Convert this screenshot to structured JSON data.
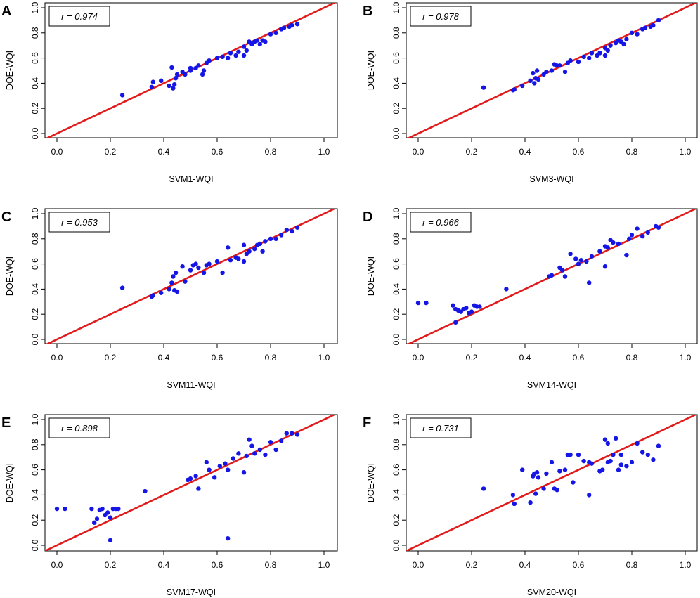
{
  "chart_data": [
    {
      "type": "scatter",
      "panel": "A",
      "r_label": "r = 0.974",
      "xlabel": "SVM1-WQI",
      "ylabel": "DOE-WQI",
      "xlim": [
        0,
        1
      ],
      "ylim": [
        0,
        1
      ],
      "xticks": [
        "0.0",
        "0.2",
        "0.4",
        "0.6",
        "0.8",
        "1.0"
      ],
      "yticks": [
        "0.0",
        "0.2",
        "0.4",
        "0.6",
        "0.8",
        "1.0"
      ],
      "reference_line": "y = x",
      "colors": {
        "points": "#1515e6",
        "line": "#e11b1b"
      },
      "x": [
        0.245,
        0.355,
        0.36,
        0.39,
        0.42,
        0.43,
        0.435,
        0.44,
        0.445,
        0.45,
        0.47,
        0.48,
        0.5,
        0.5,
        0.52,
        0.53,
        0.545,
        0.55,
        0.56,
        0.57,
        0.6,
        0.62,
        0.64,
        0.65,
        0.67,
        0.68,
        0.7,
        0.7,
        0.71,
        0.72,
        0.73,
        0.74,
        0.75,
        0.76,
        0.77,
        0.78,
        0.8,
        0.82,
        0.84,
        0.85,
        0.87,
        0.88,
        0.9
      ],
      "y": [
        0.305,
        0.37,
        0.41,
        0.42,
        0.38,
        0.525,
        0.36,
        0.39,
        0.44,
        0.47,
        0.49,
        0.47,
        0.52,
        0.5,
        0.52,
        0.54,
        0.47,
        0.5,
        0.56,
        0.58,
        0.6,
        0.61,
        0.6,
        0.64,
        0.62,
        0.65,
        0.62,
        0.69,
        0.66,
        0.73,
        0.71,
        0.73,
        0.74,
        0.71,
        0.74,
        0.73,
        0.79,
        0.8,
        0.83,
        0.84,
        0.85,
        0.86,
        0.87
      ]
    },
    {
      "type": "scatter",
      "panel": "B",
      "r_label": "r = 0.978",
      "xlabel": "SVM3-WQI",
      "ylabel": "DOE-WQI",
      "xlim": [
        0,
        1
      ],
      "ylim": [
        0,
        1
      ],
      "xticks": [
        "0.0",
        "0.2",
        "0.4",
        "0.6",
        "0.8",
        "1.0"
      ],
      "yticks": [
        "0.0",
        "0.2",
        "0.4",
        "0.6",
        "0.8",
        "1.0"
      ],
      "reference_line": "y = x",
      "colors": {
        "points": "#1515e6",
        "line": "#e11b1b"
      },
      "x": [
        0.245,
        0.355,
        0.36,
        0.39,
        0.42,
        0.43,
        0.435,
        0.44,
        0.445,
        0.45,
        0.47,
        0.48,
        0.5,
        0.51,
        0.52,
        0.53,
        0.55,
        0.56,
        0.57,
        0.6,
        0.62,
        0.64,
        0.65,
        0.67,
        0.68,
        0.7,
        0.7,
        0.71,
        0.72,
        0.74,
        0.75,
        0.76,
        0.77,
        0.78,
        0.8,
        0.82,
        0.84,
        0.85,
        0.87,
        0.88,
        0.9
      ],
      "y": [
        0.365,
        0.345,
        0.35,
        0.38,
        0.42,
        0.48,
        0.4,
        0.44,
        0.5,
        0.43,
        0.47,
        0.49,
        0.5,
        0.55,
        0.54,
        0.54,
        0.49,
        0.56,
        0.58,
        0.57,
        0.61,
        0.6,
        0.64,
        0.62,
        0.64,
        0.62,
        0.68,
        0.66,
        0.7,
        0.72,
        0.74,
        0.73,
        0.71,
        0.75,
        0.8,
        0.79,
        0.83,
        0.84,
        0.85,
        0.86,
        0.9
      ]
    },
    {
      "type": "scatter",
      "panel": "C",
      "r_label": "r = 0.953",
      "xlabel": "SVM11-WQI",
      "ylabel": "DOE-WQI",
      "xlim": [
        0,
        1
      ],
      "ylim": [
        0,
        1
      ],
      "xticks": [
        "0.0",
        "0.2",
        "0.4",
        "0.6",
        "0.8",
        "1.0"
      ],
      "yticks": [
        "0.0",
        "0.2",
        "0.4",
        "0.6",
        "0.8",
        "1.0"
      ],
      "reference_line": "y = x",
      "colors": {
        "points": "#1515e6",
        "line": "#e11b1b"
      },
      "x": [
        0.245,
        0.355,
        0.36,
        0.39,
        0.42,
        0.43,
        0.435,
        0.44,
        0.445,
        0.45,
        0.47,
        0.48,
        0.5,
        0.51,
        0.52,
        0.53,
        0.55,
        0.56,
        0.57,
        0.6,
        0.62,
        0.64,
        0.65,
        0.67,
        0.68,
        0.7,
        0.7,
        0.71,
        0.72,
        0.74,
        0.75,
        0.76,
        0.77,
        0.78,
        0.8,
        0.82,
        0.84,
        0.86,
        0.88,
        0.9
      ],
      "y": [
        0.41,
        0.34,
        0.35,
        0.37,
        0.4,
        0.45,
        0.5,
        0.39,
        0.53,
        0.38,
        0.58,
        0.46,
        0.55,
        0.59,
        0.6,
        0.57,
        0.53,
        0.59,
        0.6,
        0.62,
        0.53,
        0.73,
        0.63,
        0.65,
        0.64,
        0.62,
        0.75,
        0.68,
        0.7,
        0.72,
        0.75,
        0.76,
        0.7,
        0.78,
        0.8,
        0.8,
        0.83,
        0.87,
        0.86,
        0.89
      ]
    },
    {
      "type": "scatter",
      "panel": "D",
      "r_label": "r = 0.966",
      "xlabel": "SVM14-WQI",
      "ylabel": "DOE-WQI",
      "xlim": [
        0,
        1
      ],
      "ylim": [
        0,
        1
      ],
      "xticks": [
        "0.0",
        "0.2",
        "0.4",
        "0.6",
        "0.8",
        "1.0"
      ],
      "yticks": [
        "0.0",
        "0.2",
        "0.4",
        "0.6",
        "0.8",
        "1.0"
      ],
      "reference_line": "y = x",
      "colors": {
        "points": "#1515e6",
        "line": "#e11b1b"
      },
      "x": [
        0.0,
        0.03,
        0.13,
        0.14,
        0.15,
        0.16,
        0.17,
        0.18,
        0.19,
        0.2,
        0.21,
        0.22,
        0.23,
        0.14,
        0.33,
        0.49,
        0.5,
        0.53,
        0.54,
        0.55,
        0.57,
        0.59,
        0.6,
        0.61,
        0.63,
        0.64,
        0.65,
        0.68,
        0.7,
        0.7,
        0.71,
        0.72,
        0.73,
        0.75,
        0.78,
        0.79,
        0.8,
        0.82,
        0.84,
        0.86,
        0.89,
        0.9
      ],
      "y": [
        0.29,
        0.29,
        0.27,
        0.24,
        0.23,
        0.22,
        0.24,
        0.25,
        0.21,
        0.22,
        0.27,
        0.26,
        0.26,
        0.135,
        0.4,
        0.5,
        0.51,
        0.57,
        0.55,
        0.5,
        0.68,
        0.64,
        0.6,
        0.63,
        0.62,
        0.45,
        0.66,
        0.7,
        0.58,
        0.74,
        0.73,
        0.79,
        0.77,
        0.76,
        0.67,
        0.8,
        0.83,
        0.88,
        0.82,
        0.85,
        0.9,
        0.89
      ]
    },
    {
      "type": "scatter",
      "panel": "E",
      "r_label": "r = 0.898",
      "xlabel": "SVM17-WQI",
      "ylabel": "DOE-WQI",
      "xlim": [
        0,
        1
      ],
      "ylim": [
        0,
        1
      ],
      "xticks": [
        "0.0",
        "0.2",
        "0.4",
        "0.6",
        "0.8",
        "1.0"
      ],
      "yticks": [
        "0.0",
        "0.2",
        "0.4",
        "0.6",
        "0.8",
        "1.0"
      ],
      "reference_line": "y = x",
      "colors": {
        "points": "#1515e6",
        "line": "#e11b1b"
      },
      "x": [
        0.0,
        0.03,
        0.13,
        0.14,
        0.15,
        0.16,
        0.17,
        0.18,
        0.19,
        0.2,
        0.21,
        0.22,
        0.23,
        0.2,
        0.33,
        0.49,
        0.5,
        0.52,
        0.53,
        0.56,
        0.57,
        0.59,
        0.61,
        0.63,
        0.64,
        0.66,
        0.68,
        0.7,
        0.71,
        0.72,
        0.73,
        0.74,
        0.76,
        0.78,
        0.8,
        0.82,
        0.84,
        0.86,
        0.88,
        0.9,
        0.64
      ],
      "y": [
        0.29,
        0.29,
        0.29,
        0.18,
        0.21,
        0.28,
        0.29,
        0.24,
        0.26,
        0.22,
        0.29,
        0.29,
        0.29,
        0.04,
        0.43,
        0.52,
        0.53,
        0.55,
        0.45,
        0.66,
        0.6,
        0.54,
        0.63,
        0.65,
        0.6,
        0.69,
        0.73,
        0.58,
        0.71,
        0.84,
        0.79,
        0.73,
        0.76,
        0.72,
        0.82,
        0.76,
        0.83,
        0.89,
        0.89,
        0.88,
        0.055
      ]
    },
    {
      "type": "scatter",
      "panel": "F",
      "r_label": "r = 0.731",
      "xlabel": "SVM20-WQI",
      "ylabel": "DOE-WQI",
      "xlim": [
        0,
        1
      ],
      "ylim": [
        0,
        1
      ],
      "xticks": [
        "0.0",
        "0.2",
        "0.4",
        "0.6",
        "0.8",
        "1.0"
      ],
      "yticks": [
        "0.0",
        "0.2",
        "0.4",
        "0.6",
        "0.8",
        "1.0"
      ],
      "reference_line": "y = x",
      "colors": {
        "points": "#1515e6",
        "line": "#e11b1b"
      },
      "x": [
        0.245,
        0.355,
        0.36,
        0.39,
        0.42,
        0.43,
        0.435,
        0.44,
        0.445,
        0.45,
        0.47,
        0.48,
        0.5,
        0.51,
        0.52,
        0.53,
        0.55,
        0.56,
        0.57,
        0.6,
        0.62,
        0.64,
        0.65,
        0.68,
        0.69,
        0.7,
        0.71,
        0.71,
        0.72,
        0.73,
        0.74,
        0.75,
        0.76,
        0.76,
        0.78,
        0.8,
        0.82,
        0.84,
        0.86,
        0.88,
        0.9,
        0.64,
        0.58
      ],
      "y": [
        0.45,
        0.4,
        0.33,
        0.6,
        0.34,
        0.55,
        0.57,
        0.41,
        0.58,
        0.54,
        0.45,
        0.57,
        0.66,
        0.45,
        0.44,
        0.59,
        0.6,
        0.72,
        0.72,
        0.72,
        0.67,
        0.66,
        0.65,
        0.59,
        0.6,
        0.84,
        0.81,
        0.66,
        0.67,
        0.72,
        0.85,
        0.6,
        0.64,
        0.72,
        0.63,
        0.66,
        0.81,
        0.74,
        0.72,
        0.68,
        0.79,
        0.4,
        0.5
      ]
    }
  ]
}
